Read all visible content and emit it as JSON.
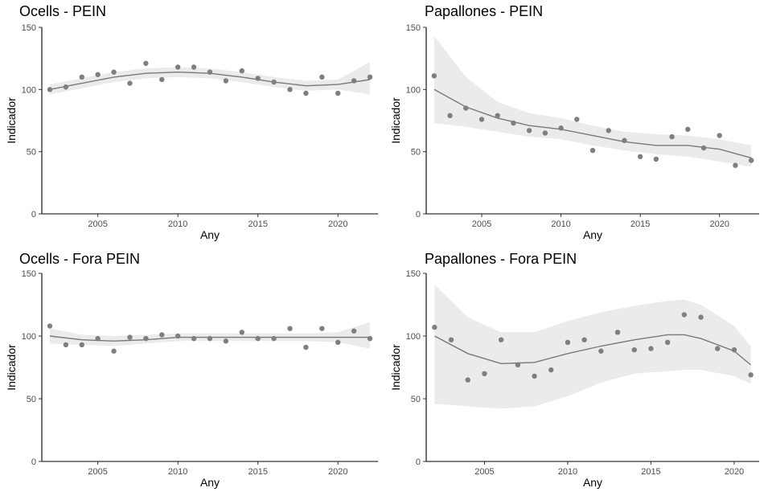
{
  "chart_data": [
    {
      "type": "scatter",
      "title": "Ocells - PEIN",
      "xlabel": "Any",
      "ylabel": "Indicador",
      "xlim": [
        2001.5,
        2022.5
      ],
      "ylim": [
        0,
        150
      ],
      "xticks": [
        2005,
        2010,
        2015,
        2020
      ],
      "xtick_labels": [
        "2005",
        "2010",
        "2015",
        "2020"
      ],
      "yticks": [
        0,
        50,
        100,
        150
      ],
      "ytick_labels": [
        "0",
        "50",
        "100",
        "150"
      ],
      "x": [
        2002,
        2003,
        2004,
        2005,
        2006,
        2007,
        2008,
        2009,
        2010,
        2011,
        2012,
        2013,
        2014,
        2015,
        2016,
        2017,
        2018,
        2019,
        2020,
        2021,
        2022
      ],
      "values": [
        100,
        102,
        110,
        112,
        114,
        105,
        121,
        108,
        118,
        118,
        114,
        107,
        115,
        109,
        106,
        100,
        97,
        110,
        97,
        107,
        110
      ],
      "smooth_x": [
        2002,
        2004,
        2006,
        2008,
        2010,
        2012,
        2014,
        2016,
        2018,
        2020,
        2022
      ],
      "smooth_y": [
        100,
        105,
        110,
        113,
        114,
        113,
        110,
        106,
        103,
        104,
        108
      ],
      "band_lower": [
        96,
        101,
        106,
        109,
        110,
        109,
        106,
        102,
        99,
        100,
        96
      ],
      "band_upper": [
        104,
        109,
        114,
        117,
        118,
        117,
        114,
        110,
        107,
        108,
        122
      ]
    },
    {
      "type": "scatter",
      "title": "Papallones - PEIN",
      "xlabel": "Any",
      "ylabel": "Indicador",
      "xlim": [
        2001.5,
        2022.5
      ],
      "ylim": [
        0,
        150
      ],
      "xticks": [
        2005,
        2010,
        2015,
        2020
      ],
      "xtick_labels": [
        "2005",
        "2010",
        "2015",
        "2020"
      ],
      "yticks": [
        0,
        50,
        100,
        150
      ],
      "ytick_labels": [
        "0",
        "50",
        "100",
        "150"
      ],
      "x": [
        2002,
        2003,
        2004,
        2005,
        2006,
        2007,
        2008,
        2009,
        2010,
        2011,
        2012,
        2013,
        2014,
        2015,
        2016,
        2017,
        2018,
        2019,
        2020,
        2021,
        2022
      ],
      "values": [
        111,
        79,
        85,
        76,
        79,
        73,
        67,
        65,
        69,
        76,
        51,
        67,
        59,
        46,
        44,
        62,
        68,
        53,
        63,
        39,
        43
      ],
      "smooth_x": [
        2002,
        2004,
        2006,
        2008,
        2010,
        2012,
        2014,
        2016,
        2018,
        2020,
        2022
      ],
      "smooth_y": [
        100,
        86,
        77,
        71,
        68,
        63,
        58,
        55,
        55,
        52,
        45
      ],
      "band_lower": [
        73,
        70,
        66,
        62,
        60,
        55,
        51,
        48,
        46,
        42,
        38
      ],
      "band_upper": [
        143,
        110,
        90,
        81,
        77,
        71,
        66,
        64,
        63,
        60,
        55
      ]
    },
    {
      "type": "scatter",
      "title": "Ocells - Fora PEIN",
      "xlabel": "Any",
      "ylabel": "Indicador",
      "xlim": [
        2001.5,
        2022.5
      ],
      "ylim": [
        0,
        150
      ],
      "xticks": [
        2005,
        2010,
        2015,
        2020
      ],
      "xtick_labels": [
        "2005",
        "2010",
        "2015",
        "2020"
      ],
      "yticks": [
        0,
        50,
        100,
        150
      ],
      "ytick_labels": [
        "0",
        "50",
        "100",
        "150"
      ],
      "x": [
        2002,
        2003,
        2004,
        2005,
        2006,
        2007,
        2008,
        2009,
        2010,
        2011,
        2012,
        2013,
        2014,
        2015,
        2016,
        2017,
        2018,
        2019,
        2020,
        2021,
        2022
      ],
      "values": [
        108,
        93,
        93,
        98,
        88,
        99,
        98,
        101,
        100,
        98,
        98,
        96,
        103,
        98,
        98,
        106,
        91,
        106,
        95,
        104,
        98
      ],
      "smooth_x": [
        2002,
        2004,
        2006,
        2008,
        2010,
        2012,
        2014,
        2016,
        2018,
        2020,
        2022
      ],
      "smooth_y": [
        100,
        97,
        96,
        97,
        99,
        99,
        99,
        99,
        99,
        99,
        99
      ],
      "band_lower": [
        94,
        93,
        92,
        94,
        96,
        96,
        96,
        96,
        96,
        95,
        90
      ],
      "band_upper": [
        106,
        101,
        100,
        101,
        102,
        102,
        102,
        102,
        102,
        103,
        111
      ]
    },
    {
      "type": "scatter",
      "title": "Papallones - Fora PEIN",
      "xlabel": "Any",
      "ylabel": "Indicador",
      "xlim": [
        2001.5,
        2021.5
      ],
      "ylim": [
        0,
        150
      ],
      "xticks": [
        2005,
        2010,
        2015,
        2020
      ],
      "xtick_labels": [
        "2005",
        "2010",
        "2015",
        "2020"
      ],
      "yticks": [
        0,
        50,
        100,
        150
      ],
      "ytick_labels": [
        "0",
        "50",
        "100",
        "150"
      ],
      "x": [
        2002,
        2003,
        2004,
        2005,
        2006,
        2007,
        2008,
        2009,
        2010,
        2011,
        2012,
        2013,
        2014,
        2015,
        2016,
        2017,
        2018,
        2019,
        2020,
        2021
      ],
      "values": [
        107,
        97,
        65,
        70,
        97,
        77,
        68,
        73,
        95,
        97,
        88,
        103,
        89,
        90,
        95,
        117,
        115,
        90,
        89,
        69
      ],
      "smooth_x": [
        2002,
        2004,
        2006,
        2008,
        2010,
        2012,
        2014,
        2016,
        2017,
        2018,
        2020,
        2021
      ],
      "smooth_y": [
        100,
        86,
        78,
        79,
        86,
        92,
        97,
        101,
        101,
        98,
        88,
        77
      ],
      "band_lower": [
        46,
        44,
        42,
        44,
        52,
        63,
        70,
        72,
        73,
        73,
        68,
        62
      ],
      "band_upper": [
        141,
        115,
        103,
        103,
        112,
        119,
        124,
        128,
        129,
        125,
        108,
        92
      ]
    }
  ]
}
